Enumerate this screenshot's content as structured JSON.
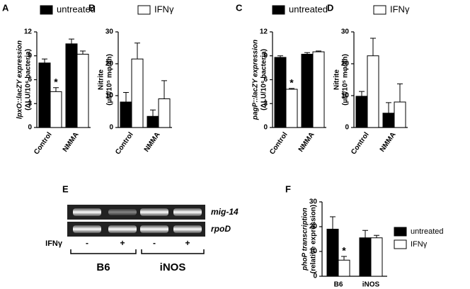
{
  "chart_data": [
    {
      "type": "bar",
      "label": "A",
      "ylabel": [
        "lpxO::lacZY expression",
        "(ΔLU/10⁶ bacteria)"
      ],
      "categories": [
        "Control",
        "NMMA"
      ],
      "ylim": [
        0,
        12
      ],
      "yticks": [
        0,
        3,
        6,
        9,
        12
      ],
      "series": [
        {
          "name": "untreated",
          "color": "#000000",
          "values": [
            8.1,
            10.5
          ],
          "errors": [
            0.5,
            0.6
          ]
        },
        {
          "color": "#ffffff",
          "values": [
            4.5,
            9.2
          ],
          "errors": [
            0.5,
            0.4
          ]
        }
      ],
      "annotations": [
        {
          "text": "*",
          "x": "Control"
        }
      ]
    },
    {
      "type": "bar",
      "label": "B",
      "ylabel": [
        "Nitrite",
        "(µM/10⁵ mφ/8h)"
      ],
      "categories": [
        "Control",
        "NMMA"
      ],
      "ylim": [
        0,
        30
      ],
      "yticks": [
        0,
        10,
        20,
        30
      ],
      "series": [
        {
          "color": "#000000",
          "values": [
            8,
            3.5
          ],
          "errors": [
            3,
            2
          ]
        },
        {
          "name": "IFNγ",
          "color": "#ffffff",
          "values": [
            21.5,
            9
          ],
          "errors": [
            5,
            5.7
          ]
        }
      ]
    },
    {
      "type": "bar",
      "label": "C",
      "ylabel": [
        "pagP::lacZY expression",
        "(ΔLU/10⁶ bacteria)"
      ],
      "categories": [
        "Control",
        "NMMA"
      ],
      "ylim": [
        0,
        12
      ],
      "yticks": [
        0,
        3,
        6,
        9,
        12
      ],
      "series": [
        {
          "name": "untreated",
          "color": "#000000",
          "values": [
            8.8,
            9.2
          ],
          "errors": [
            0.2,
            0.2
          ]
        },
        {
          "color": "#ffffff",
          "values": [
            4.8,
            9.5
          ],
          "errors": [
            0.1,
            0.1
          ]
        }
      ],
      "annotations": [
        {
          "text": "*",
          "x": "Control"
        }
      ]
    },
    {
      "type": "bar",
      "label": "D",
      "ylabel": [
        "Nitrite",
        "(µM/10⁵ mφ/8h)"
      ],
      "categories": [
        "Control",
        "NMMA"
      ],
      "ylim": [
        0,
        30
      ],
      "yticks": [
        0,
        10,
        20,
        30
      ],
      "series": [
        {
          "color": "#000000",
          "values": [
            9.8,
            4.5
          ],
          "errors": [
            1.5,
            3.3
          ]
        },
        {
          "name": "IFNγ",
          "color": "#ffffff",
          "values": [
            22.5,
            8
          ],
          "errors": [
            5.5,
            5.7
          ]
        }
      ]
    },
    {
      "type": "bar",
      "label": "F",
      "ylabel": [
        "phoP transcription",
        "(relative expression)"
      ],
      "categories": [
        "B6",
        "iNOS"
      ],
      "ylim": [
        0,
        30
      ],
      "yticks": [
        0,
        10,
        20,
        30
      ],
      "series": [
        {
          "name": "untreated",
          "color": "#000000",
          "values": [
            19,
            15.5
          ],
          "errors": [
            5,
            3
          ]
        },
        {
          "name": "IFNγ",
          "color": "#ffffff",
          "values": [
            6.5,
            15.5
          ],
          "errors": [
            1.5,
            1
          ]
        }
      ],
      "annotations": [
        {
          "text": "*",
          "x": "B6"
        }
      ]
    }
  ],
  "gel": {
    "label": "E",
    "bands": [
      "mig-14",
      "rpoD"
    ],
    "treatment": "IFNγ",
    "lanes": [
      "-",
      "+",
      "-",
      "+"
    ],
    "groups": [
      "B6",
      "iNOS"
    ]
  }
}
